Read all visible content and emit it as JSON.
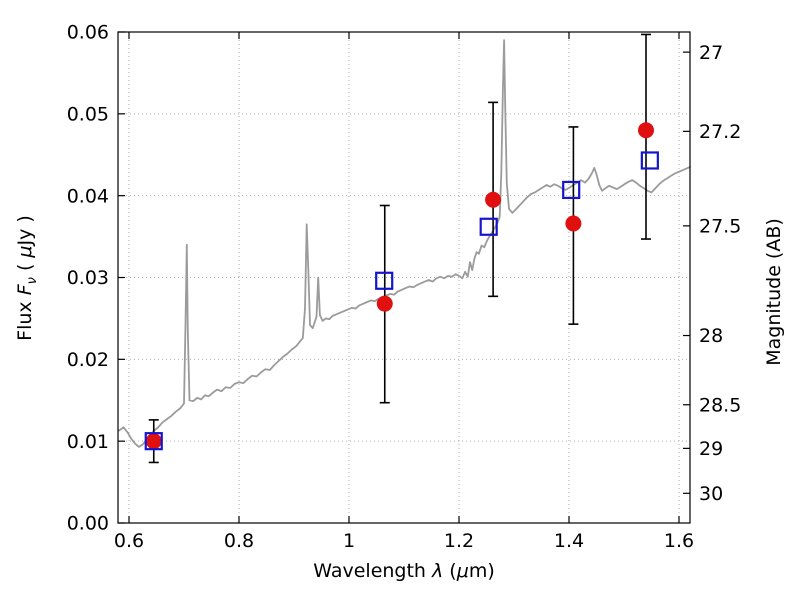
{
  "labels": {
    "x": {
      "pre": "Wavelength ",
      "lambda": "λ",
      "mid": " (",
      "mu": "μ",
      "post": "m)"
    },
    "y_left": {
      "pre": "Flux ",
      "f": "F",
      "sub": "ν",
      "mid": " ( ",
      "mu": "μ",
      "post": "Jy )"
    },
    "y_right": "Magnitude (AB)"
  },
  "chart_data": {
    "type": "scatter",
    "title": "",
    "xlabel": "Wavelength λ (μm)",
    "ylabel_left": "Flux Fν ( μJy )",
    "ylabel_right": "Magnitude (AB)",
    "xlim": [
      0.58,
      1.62
    ],
    "ylim": [
      0.0,
      0.06
    ],
    "grid": "dotted",
    "grid_color": "#b0b0b0",
    "x_ticks": [
      {
        "v": 0.6,
        "label": "0.6"
      },
      {
        "v": 0.8,
        "label": "0.8"
      },
      {
        "v": 1.0,
        "label": "1"
      },
      {
        "v": 1.2,
        "label": "1.2"
      },
      {
        "v": 1.4,
        "label": "1.4"
      },
      {
        "v": 1.6,
        "label": "1.6"
      }
    ],
    "y_ticks_left": [
      {
        "v": 0.0,
        "label": "0.00"
      },
      {
        "v": 0.01,
        "label": "0.01"
      },
      {
        "v": 0.02,
        "label": "0.02"
      },
      {
        "v": 0.03,
        "label": "0.03"
      },
      {
        "v": 0.04,
        "label": "0.04"
      },
      {
        "v": 0.05,
        "label": "0.05"
      },
      {
        "v": 0.06,
        "label": "0.06"
      }
    ],
    "y_ticks_right": [
      {
        "mag": "27",
        "flux": 0.05754
      },
      {
        "mag": "27.2",
        "flux": 0.04786
      },
      {
        "mag": "27.5",
        "flux": 0.03631
      },
      {
        "mag": "28",
        "flux": 0.02291
      },
      {
        "mag": "28.5",
        "flux": 0.01445
      },
      {
        "mag": "29",
        "flux": 0.00912
      },
      {
        "mag": "30",
        "flux": 0.00363
      }
    ],
    "series": [
      {
        "name": "model-spectrum",
        "type": "line",
        "color": "#9b9b9b",
        "width": 1.8,
        "points": [
          [
            0.582,
            0.0113
          ],
          [
            0.59,
            0.0117
          ],
          [
            0.597,
            0.0111
          ],
          [
            0.604,
            0.0103
          ],
          [
            0.611,
            0.0097
          ],
          [
            0.618,
            0.0093
          ],
          [
            0.625,
            0.0096
          ],
          [
            0.632,
            0.0102
          ],
          [
            0.639,
            0.0108
          ],
          [
            0.646,
            0.0113
          ],
          [
            0.653,
            0.0117
          ],
          [
            0.661,
            0.0123
          ],
          [
            0.669,
            0.0127
          ],
          [
            0.677,
            0.0131
          ],
          [
            0.685,
            0.0136
          ],
          [
            0.693,
            0.014
          ],
          [
            0.7,
            0.0146
          ],
          [
            0.703,
            0.025
          ],
          [
            0.705,
            0.034
          ],
          [
            0.707,
            0.0235
          ],
          [
            0.71,
            0.015
          ],
          [
            0.717,
            0.0149
          ],
          [
            0.724,
            0.0153
          ],
          [
            0.731,
            0.0151
          ],
          [
            0.738,
            0.0156
          ],
          [
            0.745,
            0.0155
          ],
          [
            0.752,
            0.0159
          ],
          [
            0.76,
            0.0163
          ],
          [
            0.768,
            0.0161
          ],
          [
            0.776,
            0.0166
          ],
          [
            0.784,
            0.0165
          ],
          [
            0.792,
            0.017
          ],
          [
            0.8,
            0.0172
          ],
          [
            0.808,
            0.0171
          ],
          [
            0.816,
            0.0176
          ],
          [
            0.824,
            0.018
          ],
          [
            0.832,
            0.0179
          ],
          [
            0.84,
            0.0184
          ],
          [
            0.848,
            0.0188
          ],
          [
            0.856,
            0.0187
          ],
          [
            0.864,
            0.0193
          ],
          [
            0.872,
            0.0198
          ],
          [
            0.88,
            0.0203
          ],
          [
            0.888,
            0.0207
          ],
          [
            0.896,
            0.0212
          ],
          [
            0.904,
            0.0216
          ],
          [
            0.91,
            0.0221
          ],
          [
            0.916,
            0.0226
          ],
          [
            0.92,
            0.0262
          ],
          [
            0.923,
            0.0365
          ],
          [
            0.926,
            0.031
          ],
          [
            0.929,
            0.0242
          ],
          [
            0.934,
            0.0238
          ],
          [
            0.938,
            0.0246
          ],
          [
            0.941,
            0.0252
          ],
          [
            0.944,
            0.03
          ],
          [
            0.947,
            0.0254
          ],
          [
            0.952,
            0.0247
          ],
          [
            0.958,
            0.025
          ],
          [
            0.964,
            0.0249
          ],
          [
            0.97,
            0.0253
          ],
          [
            0.977,
            0.0255
          ],
          [
            0.984,
            0.0257
          ],
          [
            0.991,
            0.0259
          ],
          [
            0.998,
            0.0261
          ],
          [
            1.005,
            0.0263
          ],
          [
            1.012,
            0.0262
          ],
          [
            1.019,
            0.0266
          ],
          [
            1.026,
            0.0268
          ],
          [
            1.033,
            0.027
          ],
          [
            1.04,
            0.0272
          ],
          [
            1.047,
            0.0271
          ],
          [
            1.054,
            0.0274
          ],
          [
            1.061,
            0.0276
          ],
          [
            1.068,
            0.0278
          ],
          [
            1.075,
            0.028
          ],
          [
            1.082,
            0.0279
          ],
          [
            1.089,
            0.0283
          ],
          [
            1.096,
            0.0285
          ],
          [
            1.103,
            0.0287
          ],
          [
            1.11,
            0.0289
          ],
          [
            1.117,
            0.0288
          ],
          [
            1.124,
            0.0291
          ],
          [
            1.131,
            0.0293
          ],
          [
            1.138,
            0.0295
          ],
          [
            1.145,
            0.0297
          ],
          [
            1.152,
            0.0295
          ],
          [
            1.159,
            0.0299
          ],
          [
            1.166,
            0.0301
          ],
          [
            1.173,
            0.0299
          ],
          [
            1.18,
            0.0302
          ],
          [
            1.187,
            0.0301
          ],
          [
            1.194,
            0.0304
          ],
          [
            1.2,
            0.0302
          ],
          [
            1.206,
            0.0299
          ],
          [
            1.211,
            0.0307
          ],
          [
            1.216,
            0.0301
          ],
          [
            1.22,
            0.0319
          ],
          [
            1.224,
            0.0309
          ],
          [
            1.228,
            0.0323
          ],
          [
            1.232,
            0.0331
          ],
          [
            1.236,
            0.0329
          ],
          [
            1.241,
            0.0339
          ],
          [
            1.246,
            0.0337
          ],
          [
            1.251,
            0.0345
          ],
          [
            1.256,
            0.0351
          ],
          [
            1.261,
            0.0356
          ],
          [
            1.266,
            0.0362
          ],
          [
            1.27,
            0.0367
          ],
          [
            1.274,
            0.0374
          ],
          [
            1.277,
            0.0428
          ],
          [
            1.28,
            0.0535
          ],
          [
            1.282,
            0.059
          ],
          [
            1.284,
            0.051
          ],
          [
            1.287,
            0.0415
          ],
          [
            1.291,
            0.0384
          ],
          [
            1.297,
            0.0379
          ],
          [
            1.303,
            0.0383
          ],
          [
            1.31,
            0.0388
          ],
          [
            1.317,
            0.0393
          ],
          [
            1.324,
            0.0398
          ],
          [
            1.331,
            0.0402
          ],
          [
            1.338,
            0.0404
          ],
          [
            1.345,
            0.0407
          ],
          [
            1.352,
            0.041
          ],
          [
            1.359,
            0.0413
          ],
          [
            1.366,
            0.0411
          ],
          [
            1.373,
            0.0414
          ],
          [
            1.38,
            0.0412
          ],
          [
            1.387,
            0.0409
          ],
          [
            1.394,
            0.0407
          ],
          [
            1.401,
            0.041
          ],
          [
            1.408,
            0.0413
          ],
          [
            1.415,
            0.0416
          ],
          [
            1.422,
            0.0419
          ],
          [
            1.429,
            0.0416
          ],
          [
            1.436,
            0.0421
          ],
          [
            1.442,
            0.0428
          ],
          [
            1.446,
            0.0434
          ],
          [
            1.45,
            0.0426
          ],
          [
            1.455,
            0.0413
          ],
          [
            1.46,
            0.0406
          ],
          [
            1.466,
            0.0409
          ],
          [
            1.473,
            0.0412
          ],
          [
            1.48,
            0.041
          ],
          [
            1.487,
            0.0408
          ],
          [
            1.494,
            0.0411
          ],
          [
            1.501,
            0.0414
          ],
          [
            1.508,
            0.0417
          ],
          [
            1.515,
            0.0419
          ],
          [
            1.522,
            0.0416
          ],
          [
            1.529,
            0.0412
          ],
          [
            1.536,
            0.0409
          ],
          [
            1.543,
            0.0406
          ],
          [
            1.55,
            0.0404
          ],
          [
            1.557,
            0.0409
          ],
          [
            1.564,
            0.0414
          ],
          [
            1.571,
            0.0418
          ],
          [
            1.578,
            0.0421
          ],
          [
            1.585,
            0.0424
          ],
          [
            1.592,
            0.0427
          ],
          [
            1.599,
            0.0429
          ],
          [
            1.606,
            0.0431
          ],
          [
            1.613,
            0.0433
          ],
          [
            1.62,
            0.0435
          ]
        ]
      },
      {
        "name": "photometry-observed",
        "type": "scatter",
        "marker": "filled-circle",
        "color": "#e01010",
        "error_color": "#000000",
        "marker_radius": 7.5,
        "points": [
          {
            "x": 0.645,
            "y": 0.01,
            "y_lo": 0.0074,
            "y_hi": 0.0126
          },
          {
            "x": 1.065,
            "y": 0.0268,
            "y_lo": 0.0147,
            "y_hi": 0.0388
          },
          {
            "x": 1.262,
            "y": 0.0395,
            "y_lo": 0.0277,
            "y_hi": 0.0514
          },
          {
            "x": 1.408,
            "y": 0.0366,
            "y_lo": 0.0243,
            "y_hi": 0.0484
          },
          {
            "x": 1.54,
            "y": 0.048,
            "y_lo": 0.0347,
            "y_hi": 0.0597
          }
        ]
      },
      {
        "name": "photometry-model",
        "type": "scatter",
        "marker": "open-square",
        "color": "#1515cf",
        "marker_size": 16,
        "points": [
          {
            "x": 0.645,
            "y": 0.01
          },
          {
            "x": 1.064,
            "y": 0.0296
          },
          {
            "x": 1.254,
            "y": 0.0362
          },
          {
            "x": 1.404,
            "y": 0.0407
          },
          {
            "x": 1.547,
            "y": 0.0443
          }
        ]
      }
    ]
  }
}
